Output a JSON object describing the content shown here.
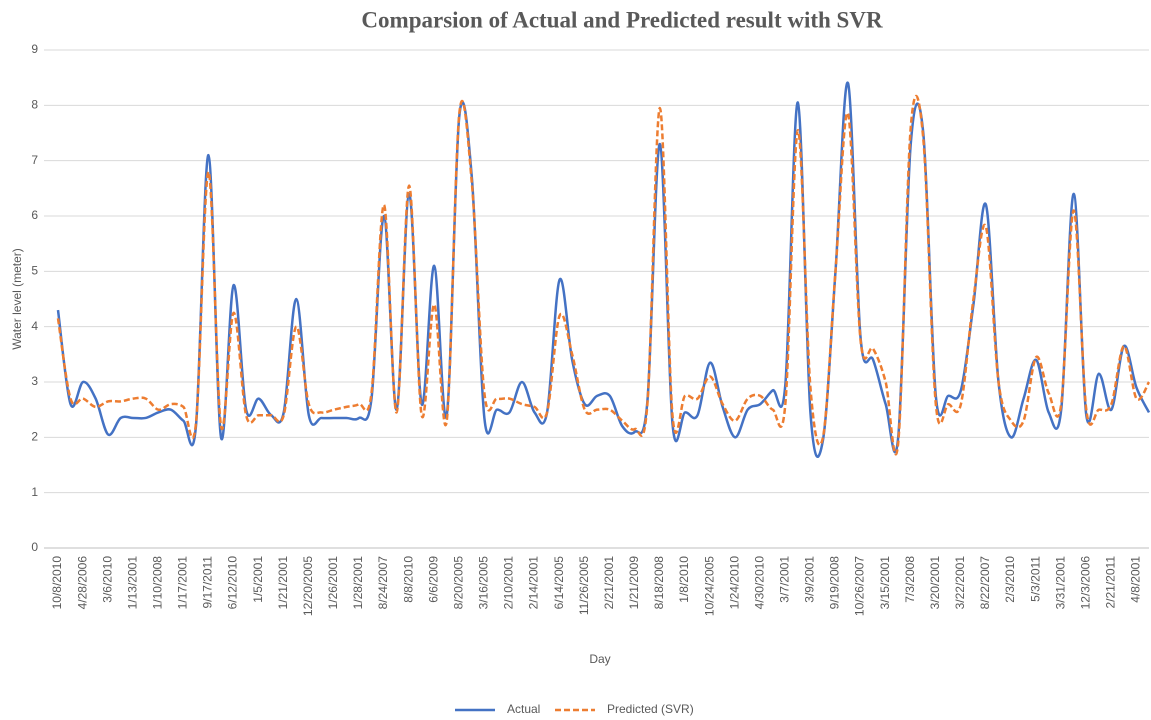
{
  "chart_data": {
    "type": "line",
    "title": "Comparsion of  Actual and Predicted result with SVR",
    "x_label": "Day",
    "y_label": "Water level (meter)",
    "categories": [
      "10/8/2010",
      null,
      "4/28/2006",
      null,
      "3/6/2010",
      null,
      "1/13/2001",
      null,
      "1/10/2008",
      null,
      "1/17/2001",
      null,
      "9/17/2011",
      null,
      "6/12/2010",
      null,
      "1/5/2001",
      null,
      "1/21/2001",
      null,
      "12/20/2005",
      null,
      "1/26/2001",
      null,
      "1/28/2001",
      null,
      "8/24/2007",
      null,
      "8/8/2010",
      null,
      "6/6/2009",
      null,
      "8/20/2005",
      null,
      "3/16/2005",
      null,
      "2/10/2001",
      null,
      "2/14/2001",
      null,
      "6/14/2005",
      null,
      "11/26/2005",
      null,
      "2/21/2001",
      null,
      "1/21/2009",
      null,
      "8/18/2008",
      null,
      "1/8/2010",
      null,
      "10/24/2005",
      null,
      "1/24/2010",
      null,
      "4/30/2010",
      null,
      "3/7/2001",
      null,
      "3/9/2001",
      null,
      "9/19/2008",
      null,
      "10/26/2007",
      null,
      "3/15/2001",
      null,
      "7/3/2008",
      null,
      "3/20/2001",
      null,
      "3/22/2001",
      null,
      "8/22/2007",
      null,
      "2/3/2010",
      null,
      "5/3/2011",
      null,
      "3/31/2001",
      null,
      "12/3/2006",
      null,
      "2/21/2011",
      null,
      "4/8/2001",
      null
    ],
    "series": [
      {
        "name": "Actual",
        "color": "#4472c4",
        "dash": false,
        "values": [
          4.3,
          2.6,
          3.0,
          2.7,
          2.05,
          2.35,
          2.35,
          2.35,
          2.45,
          2.5,
          2.3,
          2.2,
          7.1,
          2.0,
          4.75,
          2.5,
          2.7,
          2.4,
          2.45,
          4.5,
          2.4,
          2.35,
          2.35,
          2.35,
          2.35,
          2.7,
          6.0,
          2.5,
          6.4,
          2.6,
          5.1,
          2.4,
          7.8,
          6.7,
          2.35,
          2.5,
          2.45,
          3.0,
          2.45,
          2.45,
          4.85,
          3.4,
          2.6,
          2.75,
          2.75,
          2.2,
          2.1,
          2.65,
          7.3,
          2.25,
          2.45,
          2.4,
          3.35,
          2.55,
          2.0,
          2.5,
          2.6,
          2.85,
          2.95,
          8.05,
          2.45,
          1.95,
          5.0,
          8.4,
          3.8,
          3.4,
          2.6,
          2.0,
          7.3,
          7.5,
          2.75,
          2.75,
          2.85,
          4.4,
          6.2,
          3.0,
          2.0,
          2.7,
          3.4,
          2.45,
          2.5,
          6.4,
          2.4,
          3.15,
          2.5,
          3.65,
          2.9,
          2.45
        ]
      },
      {
        "name": "Predicted (SVR)",
        "color": "#ed7d31",
        "dash": true,
        "values": [
          4.15,
          2.7,
          2.7,
          2.55,
          2.65,
          2.65,
          2.7,
          2.7,
          2.5,
          2.6,
          2.55,
          2.25,
          6.8,
          2.2,
          4.25,
          2.4,
          2.4,
          2.4,
          2.4,
          4.0,
          2.6,
          2.45,
          2.5,
          2.55,
          2.6,
          2.8,
          6.2,
          2.45,
          6.55,
          2.4,
          4.4,
          2.3,
          7.85,
          6.6,
          2.8,
          2.7,
          2.7,
          2.6,
          2.55,
          2.45,
          4.2,
          3.5,
          2.5,
          2.5,
          2.5,
          2.3,
          2.15,
          2.6,
          7.95,
          2.4,
          2.75,
          2.7,
          3.1,
          2.6,
          2.3,
          2.7,
          2.75,
          2.5,
          2.6,
          7.55,
          2.9,
          2.0,
          5.0,
          7.85,
          3.75,
          3.6,
          3.0,
          1.9,
          7.6,
          7.4,
          2.6,
          2.6,
          2.6,
          4.5,
          5.8,
          3.0,
          2.3,
          2.3,
          3.45,
          2.8,
          2.6,
          6.1,
          2.5,
          2.5,
          2.6,
          3.65,
          2.7,
          3.0
        ]
      }
    ],
    "ylim": [
      0,
      9
    ],
    "yticks": [
      0,
      1,
      2,
      3,
      4,
      5,
      6,
      7,
      8,
      9
    ],
    "grid": true,
    "legend": "bottom"
  }
}
